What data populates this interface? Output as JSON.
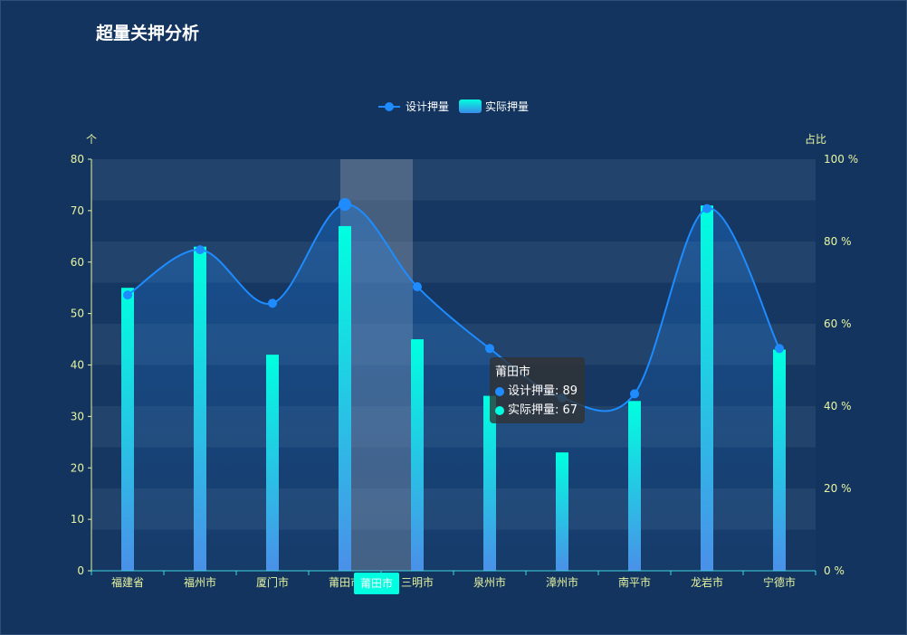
{
  "title": "超量关押分析",
  "colors": {
    "background": "#12345f",
    "line": "#1e8cff",
    "bar_top": "#00ffe0",
    "bar_bottom": "#4a90e8",
    "axis_text": "#e8f5a0",
    "tooltip_bg": "rgba(50,50,50,0.78)"
  },
  "legend": [
    {
      "name": "设计押量",
      "color": "#1e8cff",
      "icon": "line-circle-icon"
    },
    {
      "name": "实际押量",
      "color": "#00ffe0",
      "icon": "gradient-rect-icon"
    }
  ],
  "chart_data": {
    "type": "bar",
    "title": "超量关押分析",
    "categories": [
      "福建省",
      "福州市",
      "厦门市",
      "莆田市",
      "三明市",
      "泉州市",
      "漳州市",
      "南平市",
      "龙岩市",
      "宁德市"
    ],
    "series": [
      {
        "name": "设计押量",
        "type": "line",
        "axis": "right",
        "values": [
          67,
          78,
          65,
          89,
          69,
          54,
          42,
          43,
          88,
          54
        ]
      },
      {
        "name": "实际押量",
        "type": "bar",
        "axis": "left",
        "values": [
          55,
          63,
          42,
          67,
          45,
          34,
          23,
          33,
          71,
          43
        ]
      }
    ],
    "y_left": {
      "label": "个",
      "ylim": [
        0,
        80
      ],
      "ticks": [
        "0",
        "10",
        "20",
        "30",
        "40",
        "50",
        "60",
        "70",
        "80"
      ]
    },
    "y_right": {
      "label": "占比",
      "ylim": [
        0,
        100
      ],
      "ticks": [
        "0 %",
        "20 %",
        "40 %",
        "60 %",
        "80 %",
        "100 %"
      ]
    },
    "grid": true,
    "legend_position": "top-center",
    "highlighted_category": "莆田市"
  },
  "tooltip": {
    "title": "莆田市",
    "rows": [
      {
        "label": "设计押量: 89",
        "color": "#1e8cff"
      },
      {
        "label": "实际押量: 67",
        "color": "#00ffe0"
      }
    ]
  }
}
